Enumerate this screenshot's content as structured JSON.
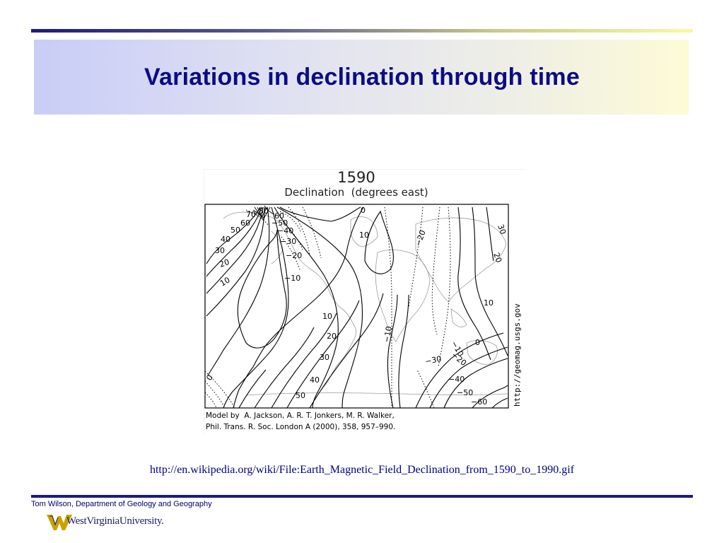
{
  "slide": {
    "title": "Variations in declination through time",
    "source_url": "http://en.wikipedia.org/wiki/File:Earth_Magnetic_Field_Declination_from_1590_to_1990.gif",
    "footer_text": "Tom Wilson, Department of Geology and Geography",
    "logo_text": "WestVirginiaUniversity."
  },
  "map": {
    "year": "1590",
    "subtitle": "Declination  (degrees east)",
    "credit_line1": "Model by  A. Jackson, A. R. T. Jonkers, M. R. Walker,",
    "credit_line2": "Phil. Trans. R. Soc. London A (2000), 358, 957–990.",
    "side_url": "http://geomag.usgs.gov",
    "contour_labels": {
      "l70": "70",
      "l80": "80",
      "l60a": "60",
      "l50a": "50",
      "l40a": "40",
      "l30a": "30",
      "l20a": "20",
      "l10a": "10",
      "r60": "60",
      "r50": "−50",
      "r40": "−40",
      "r30": "−30",
      "r20": "−20",
      "r10": "−10",
      "zero_top": "0",
      "ten_eu": "10",
      "neg20_top": "−20",
      "r30b": "30",
      "r20b": "20",
      "ten_as": "10",
      "zero_as": "0",
      "s10": "10",
      "s20": "20",
      "s30": "30",
      "s40": "40",
      "s50": "50",
      "neg10_af": "−10",
      "neg10_in": "−10",
      "neg20_in": "−20",
      "neg30_in": "−30",
      "neg40_s": "−40",
      "neg50_s": "−50",
      "neg60_s": "−60",
      "zero_sw": "0"
    }
  },
  "colors": {
    "title": "#0c0c84",
    "rule_dark": "#1c1c7a",
    "logo_gold": "#c9a100"
  }
}
